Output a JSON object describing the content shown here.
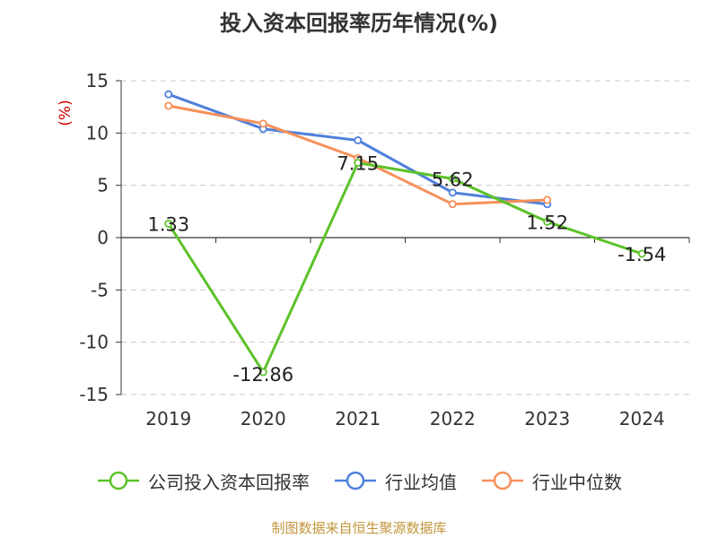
{
  "chart_data": {
    "type": "line",
    "title": "投入资本回报率历年情况(%)",
    "ylabel": "(%)",
    "xlabel": "",
    "categories": [
      "2019",
      "2020",
      "2021",
      "2022",
      "2023",
      "2024"
    ],
    "ylim": [
      -15,
      15
    ],
    "yticks": [
      15,
      10,
      5,
      0,
      -5,
      -10,
      -15
    ],
    "grid": true,
    "legend_position": "bottom",
    "series": [
      {
        "name": "公司投入资本回报率",
        "color": "#5cc22a",
        "values": [
          1.33,
          -12.86,
          7.15,
          5.62,
          1.52,
          -1.54
        ],
        "data_labels": [
          "1.33",
          "-12.86",
          "7.15",
          "5.62",
          "1.52",
          "-1.54"
        ]
      },
      {
        "name": "行业均值",
        "color": "#4f80dc",
        "values": [
          13.7,
          10.4,
          9.3,
          4.3,
          3.2,
          null
        ]
      },
      {
        "name": "行业中位数",
        "color": "#f7905a",
        "values": [
          12.6,
          10.9,
          7.6,
          3.2,
          3.6,
          null
        ]
      }
    ]
  },
  "footer": {
    "source": "制图数据来自恒生聚源数据库"
  }
}
